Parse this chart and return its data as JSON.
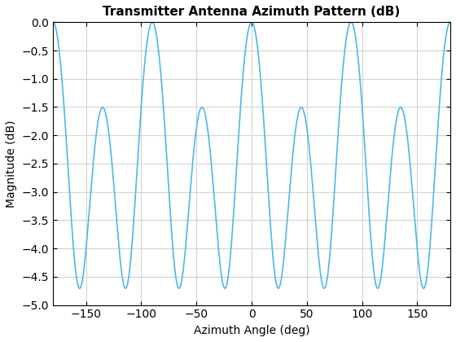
{
  "title": "Transmitter Antenna Azimuth Pattern (dB)",
  "xlabel": "Azimuth Angle (deg)",
  "ylabel": "Magnitude (dB)",
  "xlim": [
    -180,
    180
  ],
  "ylim": [
    -5,
    0
  ],
  "xticks": [
    -150,
    -100,
    -50,
    0,
    50,
    100,
    150
  ],
  "yticks": [
    0,
    -0.5,
    -1,
    -1.5,
    -2,
    -2.5,
    -3,
    -3.5,
    -4,
    -4.5,
    -5
  ],
  "line_color": "#4db8e8",
  "line_width": 1.2,
  "background_color": "#ffffff",
  "grid_color": "#d3d3d3",
  "figsize": [
    5.6,
    4.2
  ],
  "dpi": 100,
  "title_fontsize": 11,
  "label_fontsize": 10,
  "tick_fontsize": 10,
  "freq_factor": 4,
  "a_coeff": 0.7943,
  "b_coeff": 0.2057
}
